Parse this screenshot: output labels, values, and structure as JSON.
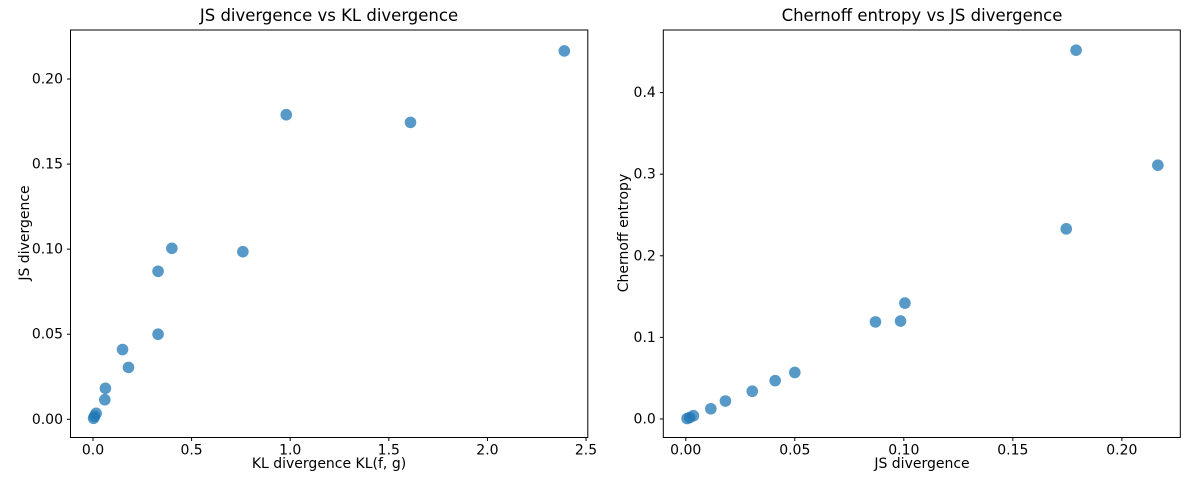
{
  "figure": {
    "background": "#ffffff",
    "spine_color": "#000000",
    "text_color": "#000000"
  },
  "chart_data": [
    {
      "type": "scatter",
      "title": "JS divergence vs KL divergence",
      "xlabel": "KL divergence KL(f, g)",
      "ylabel": "JS divergence",
      "x": [
        0.003,
        0.008,
        0.016,
        0.06,
        0.063,
        0.15,
        0.18,
        0.33,
        0.33,
        0.4,
        0.76,
        0.98,
        1.61,
        2.39
      ],
      "y": [
        0.0006,
        0.0018,
        0.0035,
        0.0115,
        0.0182,
        0.041,
        0.0305,
        0.05,
        0.087,
        0.1005,
        0.0985,
        0.179,
        0.1745,
        0.2165
      ],
      "xlim": [
        -0.114,
        2.509
      ],
      "ylim": [
        -0.0107,
        0.2288
      ],
      "xticks": {
        "values": [
          0.0,
          0.5,
          1.0,
          1.5,
          2.0,
          2.5
        ],
        "labels": [
          "0.0",
          "0.5",
          "1.0",
          "1.5",
          "2.0",
          "2.5"
        ]
      },
      "yticks": {
        "values": [
          0.0,
          0.05,
          0.1,
          0.15,
          0.2
        ],
        "labels": [
          "0.00",
          "0.05",
          "0.10",
          "0.15",
          "0.20"
        ]
      },
      "grid": false,
      "legend": null,
      "marker": {
        "shape": "circle",
        "color": "#1f77b4",
        "opacity": 0.75,
        "radius": 5.8
      }
    },
    {
      "type": "scatter",
      "title": "Chernoff entropy vs JS divergence",
      "xlabel": "JS divergence",
      "ylabel": "Chernoff entropy",
      "x": [
        0.0006,
        0.0018,
        0.0035,
        0.0115,
        0.0182,
        0.0305,
        0.041,
        0.05,
        0.087,
        0.0985,
        0.1005,
        0.1745,
        0.179,
        0.2165
      ],
      "y": [
        0.0006,
        0.0018,
        0.004,
        0.0125,
        0.022,
        0.034,
        0.047,
        0.057,
        0.119,
        0.12,
        0.142,
        0.233,
        0.452,
        0.311
      ],
      "xlim": [
        -0.0103,
        0.2268
      ],
      "ylim": [
        -0.0227,
        0.4767
      ],
      "xticks": {
        "values": [
          0.0,
          0.05,
          0.1,
          0.15,
          0.2
        ],
        "labels": [
          "0.00",
          "0.05",
          "0.10",
          "0.15",
          "0.20"
        ]
      },
      "yticks": {
        "values": [
          0.0,
          0.1,
          0.2,
          0.3,
          0.4
        ],
        "labels": [
          "0.0",
          "0.1",
          "0.2",
          "0.3",
          "0.4"
        ]
      },
      "grid": false,
      "legend": null,
      "marker": {
        "shape": "circle",
        "color": "#1f77b4",
        "opacity": 0.75,
        "radius": 5.8
      }
    }
  ]
}
